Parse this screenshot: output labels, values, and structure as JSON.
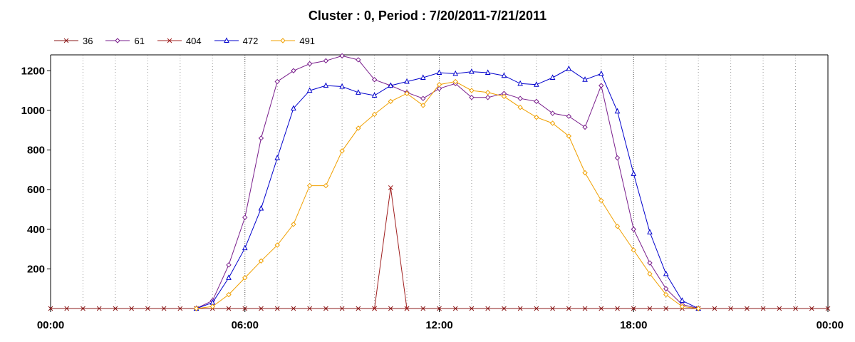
{
  "chart_data": {
    "type": "line",
    "title": "Cluster : 0, Period : 7/20/2011-7/21/2011",
    "xlabel": "",
    "ylabel": "",
    "x_tick_labels": [
      "00:00",
      "06:00",
      "12:00",
      "18:00",
      "00:00"
    ],
    "y_tick_labels": [
      "200",
      "400",
      "600",
      "800",
      "1000",
      "1200"
    ],
    "xlim_hours": [
      0,
      24
    ],
    "ylim": [
      0,
      1280
    ],
    "grid": true,
    "legend_position": "top-left",
    "series": [
      {
        "name": "36",
        "color": "#8b1a1a",
        "marker": "x",
        "points": [
          [
            0,
            0
          ],
          [
            0.5,
            0
          ],
          [
            1,
            0
          ],
          [
            1.5,
            0
          ],
          [
            2,
            0
          ],
          [
            2.5,
            0
          ],
          [
            3,
            0
          ],
          [
            3.5,
            0
          ],
          [
            4,
            0
          ],
          [
            4.5,
            0
          ],
          [
            5,
            0
          ],
          [
            5.5,
            0
          ],
          [
            6,
            0
          ],
          [
            6.5,
            0
          ],
          [
            7,
            0
          ],
          [
            7.5,
            0
          ],
          [
            8,
            0
          ],
          [
            8.5,
            0
          ],
          [
            9,
            0
          ],
          [
            9.5,
            0
          ],
          [
            10,
            0
          ],
          [
            10.5,
            0
          ],
          [
            11,
            0
          ],
          [
            11.5,
            0
          ],
          [
            12,
            0
          ],
          [
            12.5,
            0
          ],
          [
            13,
            0
          ],
          [
            13.5,
            0
          ],
          [
            14,
            0
          ],
          [
            14.5,
            0
          ],
          [
            15,
            0
          ],
          [
            15.5,
            0
          ],
          [
            16,
            0
          ],
          [
            16.5,
            0
          ],
          [
            17,
            0
          ],
          [
            17.5,
            0
          ],
          [
            18,
            0
          ],
          [
            18.5,
            0
          ],
          [
            19,
            0
          ],
          [
            19.5,
            0
          ],
          [
            20,
            0
          ],
          [
            20.5,
            0
          ],
          [
            21,
            0
          ],
          [
            21.5,
            0
          ],
          [
            22,
            0
          ],
          [
            22.5,
            0
          ],
          [
            23,
            0
          ],
          [
            23.5,
            0
          ],
          [
            24,
            0
          ]
        ]
      },
      {
        "name": "61",
        "color": "#7a1f8c",
        "marker": "diamond",
        "points": [
          [
            4.5,
            0
          ],
          [
            5,
            40
          ],
          [
            5.5,
            220
          ],
          [
            6,
            460
          ],
          [
            6.5,
            860
          ],
          [
            7,
            1145
          ],
          [
            7.5,
            1200
          ],
          [
            8,
            1235
          ],
          [
            8.5,
            1250
          ],
          [
            9,
            1275
          ],
          [
            9.5,
            1255
          ],
          [
            10,
            1155
          ],
          [
            10.5,
            1125
          ],
          [
            11,
            1090
          ],
          [
            11.5,
            1060
          ],
          [
            12,
            1110
          ],
          [
            12.5,
            1135
          ],
          [
            13,
            1065
          ],
          [
            13.5,
            1065
          ],
          [
            14,
            1085
          ],
          [
            14.5,
            1060
          ],
          [
            15,
            1045
          ],
          [
            15.5,
            985
          ],
          [
            16,
            970
          ],
          [
            16.5,
            915
          ],
          [
            17,
            1125
          ],
          [
            17.5,
            760
          ],
          [
            18,
            400
          ],
          [
            18.5,
            230
          ],
          [
            19,
            100
          ],
          [
            19.5,
            20
          ],
          [
            20,
            0
          ]
        ]
      },
      {
        "name": "404",
        "color": "#a02020",
        "marker": "x",
        "points": [
          [
            10,
            0
          ],
          [
            10.5,
            610
          ],
          [
            11,
            0
          ]
        ]
      },
      {
        "name": "472",
        "color": "#0000cc",
        "marker": "triangle",
        "points": [
          [
            4.5,
            0
          ],
          [
            5,
            30
          ],
          [
            5.5,
            155
          ],
          [
            6,
            305
          ],
          [
            6.5,
            505
          ],
          [
            7,
            760
          ],
          [
            7.5,
            1010
          ],
          [
            8,
            1100
          ],
          [
            8.5,
            1125
          ],
          [
            9,
            1120
          ],
          [
            9.5,
            1090
          ],
          [
            10,
            1075
          ],
          [
            10.5,
            1125
          ],
          [
            11,
            1145
          ],
          [
            11.5,
            1165
          ],
          [
            12,
            1190
          ],
          [
            12.5,
            1185
          ],
          [
            13,
            1195
          ],
          [
            13.5,
            1190
          ],
          [
            14,
            1175
          ],
          [
            14.5,
            1135
          ],
          [
            15,
            1130
          ],
          [
            15.5,
            1165
          ],
          [
            16,
            1210
          ],
          [
            16.5,
            1155
          ],
          [
            17,
            1185
          ],
          [
            17.5,
            995
          ],
          [
            18,
            680
          ],
          [
            18.5,
            385
          ],
          [
            19,
            175
          ],
          [
            19.5,
            40
          ],
          [
            20,
            0
          ]
        ]
      },
      {
        "name": "491",
        "color": "#f0a000",
        "marker": "diamond",
        "points": [
          [
            4.5,
            0
          ],
          [
            5,
            10
          ],
          [
            5.5,
            70
          ],
          [
            6,
            155
          ],
          [
            6.5,
            240
          ],
          [
            7,
            320
          ],
          [
            7.5,
            425
          ],
          [
            8,
            620
          ],
          [
            8.5,
            620
          ],
          [
            9,
            795
          ],
          [
            9.5,
            910
          ],
          [
            10,
            980
          ],
          [
            10.5,
            1045
          ],
          [
            11,
            1085
          ],
          [
            11.5,
            1025
          ],
          [
            12,
            1130
          ],
          [
            12.5,
            1145
          ],
          [
            13,
            1100
          ],
          [
            13.5,
            1090
          ],
          [
            14,
            1070
          ],
          [
            14.5,
            1015
          ],
          [
            15,
            965
          ],
          [
            15.5,
            935
          ],
          [
            16,
            870
          ],
          [
            16.5,
            685
          ],
          [
            17,
            545
          ],
          [
            17.5,
            415
          ],
          [
            18,
            295
          ],
          [
            18.5,
            175
          ],
          [
            19,
            70
          ],
          [
            19.5,
            10
          ],
          [
            20,
            0
          ]
        ]
      }
    ]
  }
}
